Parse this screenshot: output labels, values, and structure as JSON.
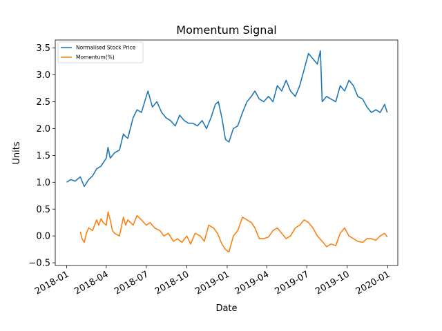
{
  "chart_data": {
    "type": "line",
    "title": "Momentum Signal",
    "xlabel": "Date",
    "ylabel": "Units",
    "xlim": [
      "2017-12-06",
      "2020-01-24"
    ],
    "ylim": [
      -0.55,
      3.65
    ],
    "x_ticks": [
      "2018-01",
      "2018-04",
      "2018-07",
      "2018-10",
      "2019-01",
      "2019-04",
      "2019-07",
      "2019-10",
      "2020-01"
    ],
    "y_ticks": [
      "−0.5",
      "0.0",
      "0.5",
      "1.0",
      "1.5",
      "2.0",
      "2.5",
      "3.0",
      "3.5"
    ],
    "y_tick_values": [
      -0.5,
      0.0,
      0.5,
      1.0,
      1.5,
      2.0,
      2.5,
      3.0,
      3.5
    ],
    "grid": false,
    "legend_position": "top-left",
    "series": [
      {
        "name": "Normalised Stock Price",
        "color": "#1f77b4",
        "x": [
          "2018-01-01",
          "2018-01-10",
          "2018-01-20",
          "2018-02-01",
          "2018-02-10",
          "2018-02-20",
          "2018-03-01",
          "2018-03-10",
          "2018-03-20",
          "2018-04-01",
          "2018-04-05",
          "2018-04-10",
          "2018-04-20",
          "2018-05-01",
          "2018-05-10",
          "2018-05-15",
          "2018-05-20",
          "2018-06-01",
          "2018-06-10",
          "2018-06-20",
          "2018-07-01",
          "2018-07-05",
          "2018-07-15",
          "2018-07-25",
          "2018-08-05",
          "2018-08-15",
          "2018-08-25",
          "2018-09-05",
          "2018-09-15",
          "2018-09-25",
          "2018-10-05",
          "2018-10-15",
          "2018-10-25",
          "2018-11-05",
          "2018-11-15",
          "2018-11-25",
          "2018-12-05",
          "2018-12-12",
          "2018-12-20",
          "2018-12-28",
          "2019-01-05",
          "2019-01-15",
          "2019-01-25",
          "2019-02-05",
          "2019-02-15",
          "2019-02-25",
          "2019-03-05",
          "2019-03-15",
          "2019-03-25",
          "2019-04-05",
          "2019-04-15",
          "2019-04-25",
          "2019-05-05",
          "2019-05-15",
          "2019-05-25",
          "2019-06-05",
          "2019-06-15",
          "2019-06-25",
          "2019-07-05",
          "2019-07-15",
          "2019-07-25",
          "2019-08-01",
          "2019-08-05",
          "2019-08-15",
          "2019-08-25",
          "2019-09-05",
          "2019-09-15",
          "2019-09-25",
          "2019-10-05",
          "2019-10-15",
          "2019-10-25",
          "2019-11-05",
          "2019-11-15",
          "2019-11-25",
          "2019-12-05",
          "2019-12-15",
          "2019-12-25",
          "2019-12-31"
        ],
        "values": [
          1.0,
          1.05,
          1.02,
          1.1,
          0.92,
          1.05,
          1.12,
          1.25,
          1.3,
          1.45,
          1.65,
          1.45,
          1.55,
          1.6,
          1.9,
          1.85,
          1.82,
          2.2,
          2.35,
          2.3,
          2.6,
          2.7,
          2.4,
          2.5,
          2.3,
          2.2,
          2.15,
          2.05,
          2.25,
          2.15,
          2.1,
          2.1,
          2.05,
          2.15,
          2.0,
          2.2,
          2.45,
          2.5,
          2.2,
          1.8,
          1.75,
          2.0,
          2.05,
          2.3,
          2.5,
          2.6,
          2.7,
          2.55,
          2.5,
          2.6,
          2.5,
          2.8,
          2.7,
          2.9,
          2.7,
          2.6,
          2.8,
          3.1,
          3.4,
          3.3,
          3.2,
          3.45,
          2.5,
          2.6,
          2.55,
          2.5,
          2.8,
          2.7,
          2.9,
          2.8,
          2.6,
          2.55,
          2.4,
          2.3,
          2.35,
          2.3,
          2.45,
          2.3
        ]
      },
      {
        "name": "Momentum(%)",
        "color": "#ff7f0e",
        "x": [
          "2018-02-01",
          "2018-02-05",
          "2018-02-10",
          "2018-02-15",
          "2018-02-20",
          "2018-03-01",
          "2018-03-10",
          "2018-03-15",
          "2018-03-20",
          "2018-03-25",
          "2018-04-01",
          "2018-04-05",
          "2018-04-10",
          "2018-04-15",
          "2018-04-20",
          "2018-05-01",
          "2018-05-10",
          "2018-05-15",
          "2018-05-20",
          "2018-06-01",
          "2018-06-10",
          "2018-06-20",
          "2018-07-01",
          "2018-07-10",
          "2018-07-20",
          "2018-08-01",
          "2018-08-10",
          "2018-08-20",
          "2018-09-01",
          "2018-09-10",
          "2018-09-20",
          "2018-10-01",
          "2018-10-10",
          "2018-10-20",
          "2018-11-01",
          "2018-11-10",
          "2018-11-20",
          "2018-12-01",
          "2018-12-10",
          "2018-12-20",
          "2018-12-28",
          "2019-01-05",
          "2019-01-15",
          "2019-01-25",
          "2019-02-05",
          "2019-02-15",
          "2019-02-25",
          "2019-03-05",
          "2019-03-15",
          "2019-03-25",
          "2019-04-05",
          "2019-04-15",
          "2019-04-25",
          "2019-05-05",
          "2019-05-15",
          "2019-05-25",
          "2019-06-05",
          "2019-06-15",
          "2019-06-25",
          "2019-07-05",
          "2019-07-15",
          "2019-07-25",
          "2019-08-05",
          "2019-08-15",
          "2019-08-25",
          "2019-09-05",
          "2019-09-15",
          "2019-09-25",
          "2019-10-05",
          "2019-10-15",
          "2019-10-25",
          "2019-11-05",
          "2019-11-15",
          "2019-11-25",
          "2019-12-05",
          "2019-12-15",
          "2019-12-25",
          "2019-12-31"
        ],
        "values": [
          0.08,
          -0.05,
          -0.12,
          0.05,
          0.15,
          0.1,
          0.3,
          0.2,
          0.32,
          0.25,
          0.2,
          0.45,
          0.3,
          0.1,
          0.05,
          0.0,
          0.35,
          0.2,
          0.3,
          0.2,
          0.38,
          0.3,
          0.2,
          0.25,
          0.15,
          0.1,
          0.0,
          0.05,
          -0.1,
          -0.05,
          -0.12,
          0.0,
          -0.15,
          0.05,
          0.0,
          -0.1,
          0.2,
          0.15,
          0.05,
          -0.15,
          -0.25,
          -0.3,
          0.0,
          0.1,
          0.35,
          0.3,
          0.25,
          0.15,
          -0.05,
          -0.05,
          -0.02,
          0.1,
          0.15,
          0.05,
          -0.05,
          0.0,
          0.15,
          0.2,
          0.3,
          0.25,
          0.15,
          0.0,
          -0.1,
          -0.2,
          -0.15,
          -0.18,
          0.05,
          0.15,
          0.0,
          -0.05,
          -0.1,
          -0.12,
          -0.05,
          -0.05,
          -0.08,
          0.0,
          0.05,
          -0.02
        ]
      }
    ]
  }
}
